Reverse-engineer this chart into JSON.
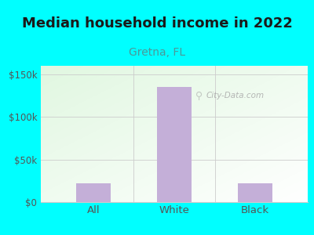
{
  "title": "Median household income in 2022",
  "subtitle": "Gretna, FL",
  "categories": [
    "All",
    "White",
    "Black"
  ],
  "values": [
    22000,
    135000,
    22000
  ],
  "bar_color": "#c4afd8",
  "bg_color": "#00ffff",
  "title_color": "#1a1a1a",
  "subtitle_color": "#4a9a9a",
  "tick_color": "#555555",
  "grid_color": "#cccccc",
  "ylim": [
    0,
    160000
  ],
  "yticks": [
    0,
    50000,
    100000,
    150000
  ],
  "ytick_labels": [
    "$0",
    "$50k",
    "$100k",
    "$150k"
  ],
  "watermark": "City-Data.com",
  "watermark_color": "#aaaaaa",
  "title_fontsize": 13,
  "subtitle_fontsize": 10
}
